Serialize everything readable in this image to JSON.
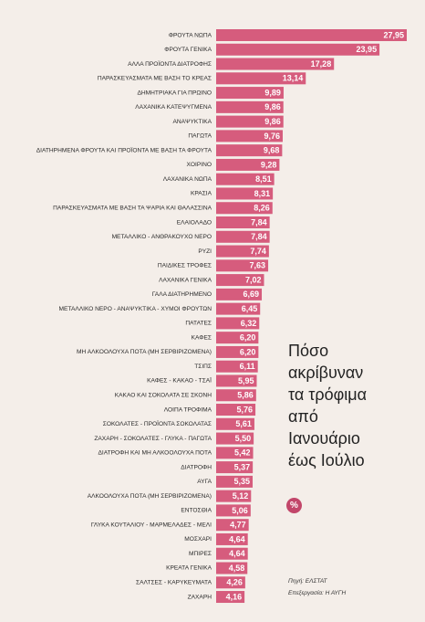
{
  "chart_data": {
    "type": "hbar",
    "title": "Πόσο ακρίβυναν τα τρόφιμα από Ιανουάριο έως Ιούλιο",
    "unit": "%",
    "source": "Πηγή: ΕΛΣΤΑΤ",
    "credit": "Επεξεργασία: Η ΑΥΓΗ",
    "color": "#d65c7d",
    "categories": [
      "ΦΡΟΥΤΑ ΝΩΠΑ",
      "ΦΡΟΥΤΑ ΓΕΝΙΚΑ",
      "ΑΛΛΑ ΠΡΟΪΟΝΤΑ ΔΙΑΤΡΟΦΗΣ",
      "ΠΑΡΑΣΚΕΥΑΣΜΑΤΑ ΜΕ ΒΑΣΗ ΤΟ ΚΡΕΑΣ",
      "ΔΗΜΗΤΡΙΑΚΑ ΓΙΑ ΠΡΩΙΝΟ",
      "ΛΑΧΑΝΙΚΑ ΚΑΤΕΨΥΓΜΕΝΑ",
      "ΑΝΑΨΥΚΤΙΚΑ",
      "ΠΑΓΩΤΑ",
      "ΔΙΑΤΗΡΗΜΕΝΑ ΦΡΟΥΤΑ ΚΑΙ ΠΡΟΪΟΝΤΑ ΜΕ ΒΑΣΗ ΤΑ ΦΡΟΥΤΑ",
      "ΧΟΙΡΙΝΟ",
      "ΛΑΧΑΝΙΚΑ ΝΩΠΑ",
      "ΚΡΑΣΙΑ",
      "ΠΑΡΑΣΚΕΥΑΣΜΑΤΑ ΜΕ ΒΑΣΗ ΤΑ ΨΑΡΙΑ ΚΑΙ ΘΑΛΑΣΣΙΝΑ",
      "ΕΛΑΙΟΛΑΔΟ",
      "ΜΕΤΑΛΛΙΚΟ - ΑΝΘΡΑΚΟΥΧΟ ΝΕΡΟ",
      "ΡΥΖΙ",
      "ΠΑΙΔΙΚΕΣ ΤΡΟΦΕΣ",
      "ΛΑΧΑΝΙΚΑ ΓΕΝΙΚΑ",
      "ΓΑΛΑ ΔΙΑΤΗΡΗΜΕΝΟ",
      "ΜΕΤΑΛΛΙΚΟ ΝΕΡΟ - ΑΝΑΨΥΚΤΙΚΑ - ΧΥΜΟΙ ΦΡΟΥΤΩΝ",
      "ΠΑΤΑΤΕΣ",
      "ΚΑΦΕΣ",
      "ΜΗ ΑΛΚΟΟΛΟΥΧΑ ΠΟΤΑ (ΜΗ ΣΕΡΒΙΡΙΖΟΜΕΝΑ)",
      "ΤΣΙΠΣ",
      "ΚΑΦΕΣ - ΚΑΚΑΟ - ΤΣΑΪ",
      "ΚΑΚΑΟ ΚΑΙ ΣΟΚΟΛΑΤΑ ΣΕ ΣΚΟΝΗ",
      "ΛΟΙΠΑ ΤΡΟΦΙΜΑ",
      "ΣΟΚΟΛΑΤΕΣ - ΠΡΟΪΟΝΤΑ ΣΟΚΟΛΑΤΑΣ",
      "ΖΑΧΑΡΗ - ΣΟΚΟΛΑΤΕΣ - ΓΛΥΚΑ - ΠΑΓΩΤΑ",
      "ΔΙΑΤΡΟΦΗ ΚΑΙ ΜΗ ΑΛΚΟΟΛΟΥΧΑ ΠΟΤΑ",
      "ΔΙΑΤΡΟΦΗ",
      "ΑΥΓΑ",
      "ΑΛΚΟΟΛΟΥΧΑ ΠΟΤΑ (ΜΗ ΣΕΡΒΙΡΙΖΟΜΕΝΑ)",
      "ΕΝΤΟΣΘΙΑ",
      "ΓΛΥΚΑ ΚΟΥΤΑΛΙΟΥ - ΜΑΡΜΕΛΑΔΕΣ - ΜΕΛΙ",
      "ΜΟΣΧΑΡΙ",
      "ΜΠΙΡΕΣ",
      "ΚΡΕΑΤΑ ΓΕΝΙΚΑ",
      "ΣΑΛΤΣΕΣ - ΚΑΡΥΚΕΥΜΑΤΑ",
      "ΖΑΧΑΡΗ"
    ],
    "values": [
      27.95,
      23.95,
      17.28,
      13.14,
      9.89,
      9.86,
      9.86,
      9.76,
      9.68,
      9.28,
      8.51,
      8.31,
      8.26,
      7.84,
      7.84,
      7.74,
      7.63,
      7.02,
      6.69,
      6.45,
      6.32,
      6.2,
      6.2,
      6.11,
      5.95,
      5.86,
      5.76,
      5.61,
      5.5,
      5.42,
      5.37,
      5.35,
      5.12,
      5.06,
      4.77,
      4.64,
      4.64,
      4.58,
      4.26,
      4.16
    ],
    "value_labels": [
      "27,95",
      "23,95",
      "17,28",
      "13,14",
      "9,89",
      "9,86",
      "9,86",
      "9,76",
      "9,68",
      "9,28",
      "8,51",
      "8,31",
      "8,26",
      "7,84",
      "7,84",
      "7,74",
      "7,63",
      "7,02",
      "6,69",
      "6,45",
      "6,32",
      "6,20",
      "6,20",
      "6,11",
      "5,95",
      "5,86",
      "5,76",
      "5,61",
      "5,50",
      "5,42",
      "5,37",
      "5,35",
      "5,12",
      "5,06",
      "4,77",
      "4,64",
      "4,64",
      "4,58",
      "4,26",
      "4,16"
    ]
  }
}
